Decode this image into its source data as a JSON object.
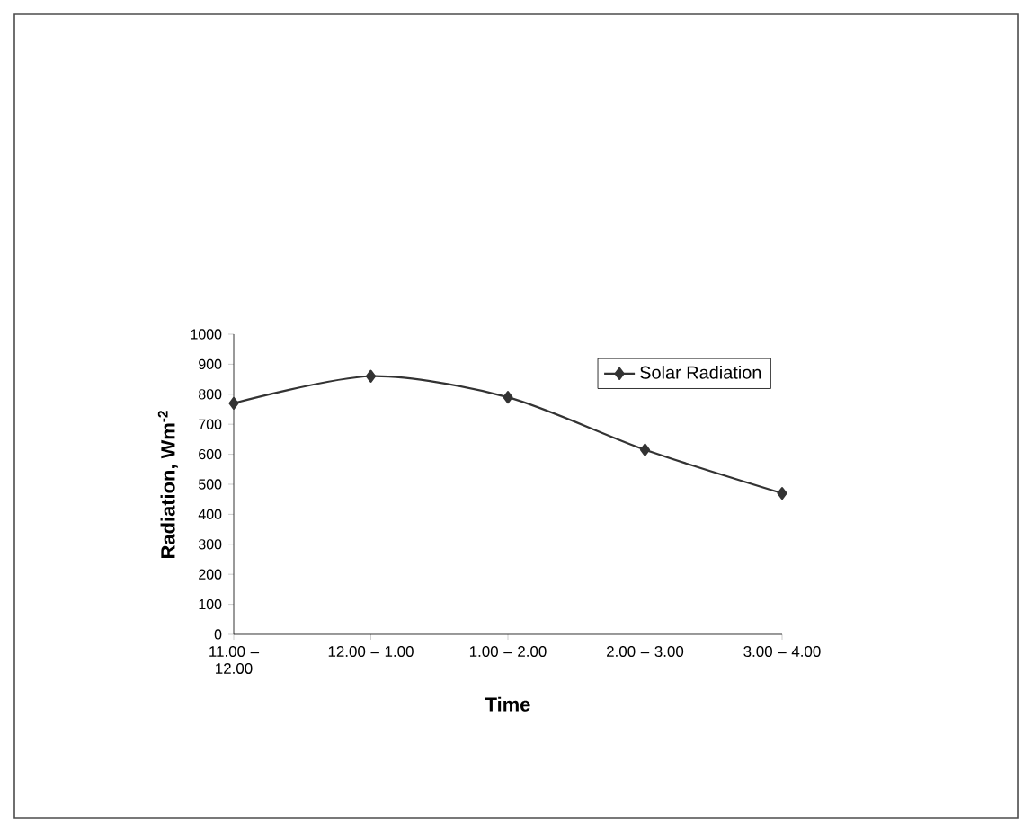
{
  "chart_data": {
    "type": "line",
    "xlabel": "Time",
    "ylabel": "Radiation, Wm$^{-2}$",
    "categories": [
      "11.00 – 12.00",
      "12.00 – 1.00",
      "1.00 – 2.00",
      "2.00 – 3.00",
      "3.00 – 4.00"
    ],
    "series": [
      {
        "name": "Solar Radiation",
        "color": "#333333",
        "values": [
          770,
          860,
          790,
          615,
          470
        ]
      }
    ],
    "ylim": [
      0,
      1000
    ],
    "yticks": [
      0,
      100,
      200,
      300,
      400,
      500,
      600,
      700,
      800,
      900,
      1000
    ],
    "grid": false,
    "legend": "top right",
    "marker": "diamond",
    "line_style": "solid"
  }
}
